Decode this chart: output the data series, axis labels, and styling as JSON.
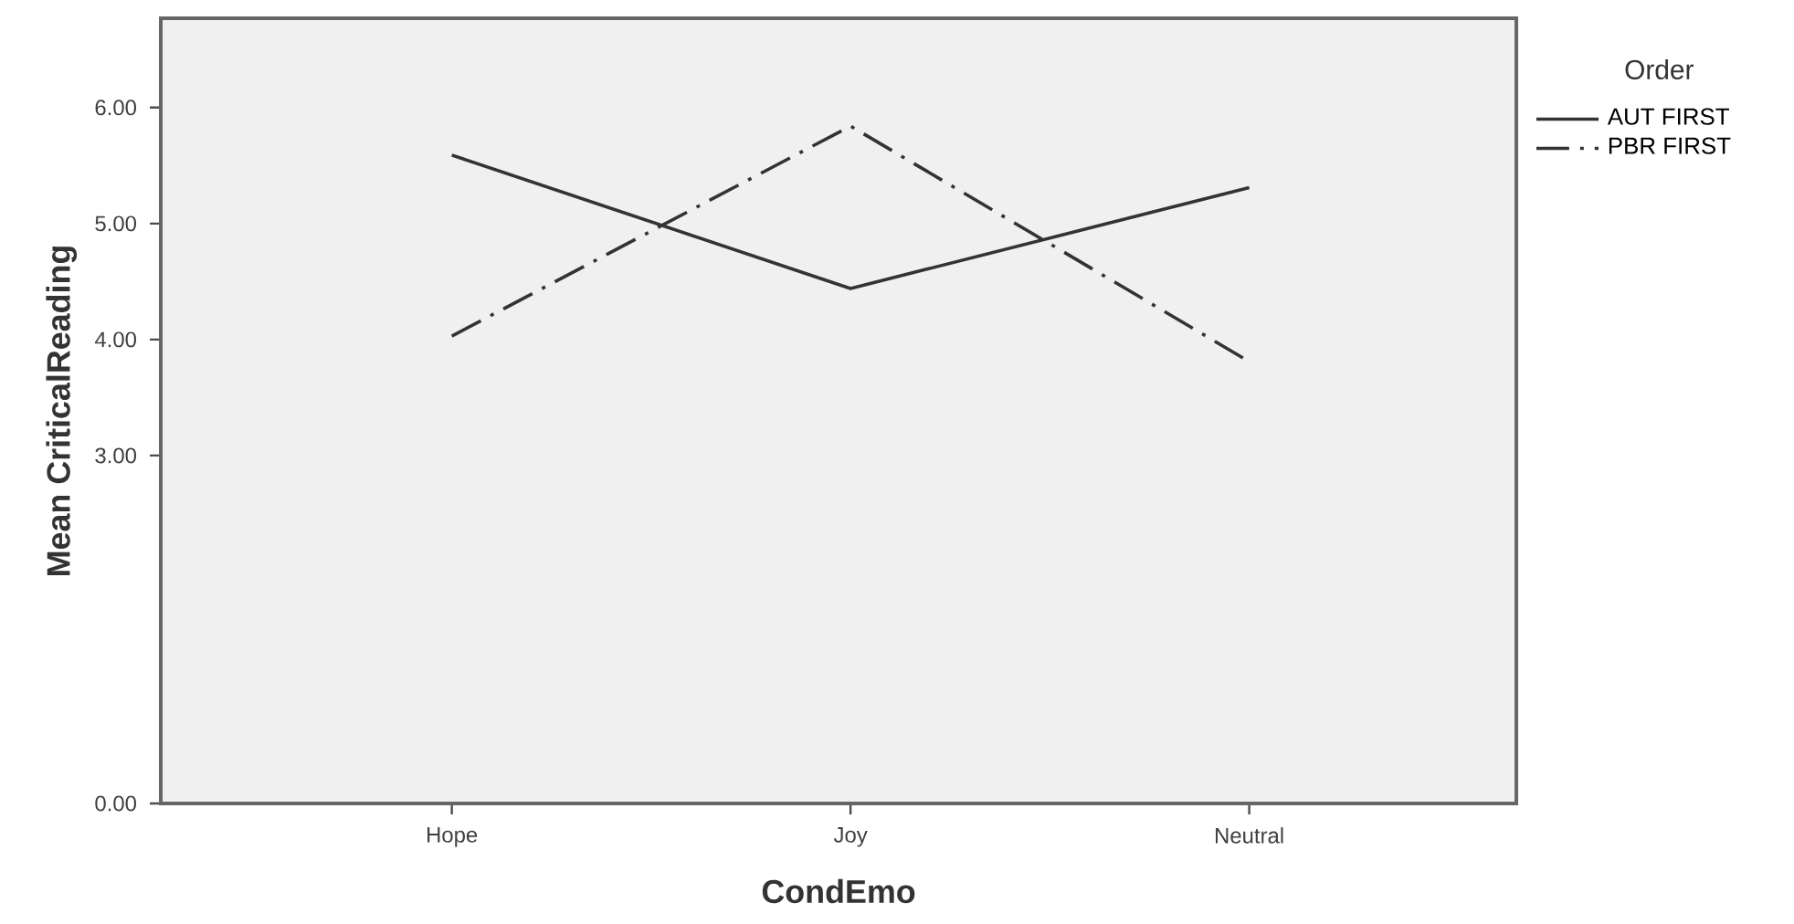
{
  "chart_data": {
    "type": "line",
    "xlabel": "CondEmo",
    "ylabel": "Mean CriticalReading",
    "legend_title": "Order",
    "categories": [
      "Hope",
      "Joy",
      "Neutral"
    ],
    "series": [
      {
        "name": "AUT FIRST",
        "color": "#333333",
        "line_style": "solid",
        "values": [
          5.59,
          4.44,
          5.31
        ]
      },
      {
        "name": "PBR FIRST",
        "color": "#333333",
        "line_style": "dashdot",
        "values": [
          4.03,
          5.84,
          3.81
        ]
      }
    ],
    "ylim": [
      0,
      6.77
    ],
    "yticks": [
      {
        "value": 0,
        "label": "0.00"
      },
      {
        "value": 3,
        "label": "3.00"
      },
      {
        "value": 4,
        "label": "4.00"
      },
      {
        "value": 5,
        "label": "5.00"
      },
      {
        "value": 6,
        "label": "6.00"
      }
    ],
    "legend": "top right",
    "grid": false,
    "marker": "none"
  }
}
